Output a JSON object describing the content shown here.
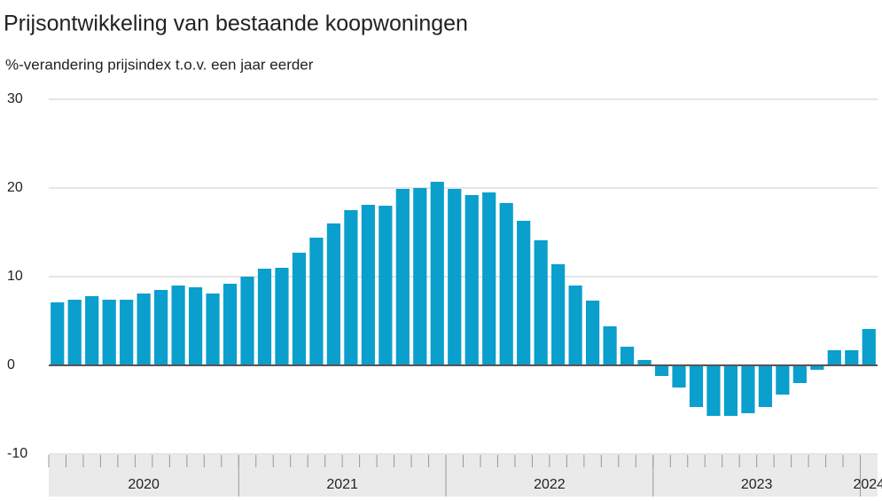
{
  "chart_data": {
    "type": "bar",
    "title": "Prijsontwikkeling van bestaande koopwoningen",
    "subtitle": "%-verandering prijsindex t.o.v. een jaar eerder",
    "years": [
      "2020",
      "2021",
      "2022",
      "2023",
      "2024"
    ],
    "values": [
      7.1,
      7.4,
      7.8,
      7.4,
      7.4,
      8.1,
      8.5,
      9.0,
      8.8,
      8.1,
      9.2,
      10.0,
      10.9,
      11.0,
      12.7,
      14.4,
      16.0,
      17.5,
      18.1,
      18.0,
      19.9,
      20.0,
      20.7,
      19.9,
      19.2,
      19.5,
      18.3,
      16.3,
      14.1,
      11.4,
      9.0,
      7.3,
      4.4,
      2.1,
      0.6,
      -1.2,
      -2.5,
      -4.7,
      -5.7,
      -5.7,
      -5.4,
      -4.7,
      -3.3,
      -2.0,
      -0.5,
      1.7,
      1.7,
      4.1
    ],
    "color": "#0a9fcc",
    "ylim": [
      -10,
      30
    ],
    "yticks": [
      -10,
      0,
      10,
      20,
      30
    ],
    "grid": true
  }
}
